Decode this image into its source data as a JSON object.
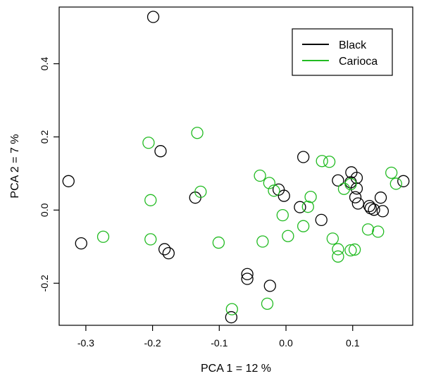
{
  "chart_data": {
    "type": "scatter",
    "title": "",
    "xlabel": "PCA 1 = 12 %",
    "ylabel": "PCA 2 = 7 %",
    "xlim": [
      -0.34,
      0.19
    ],
    "ylim": [
      -0.315,
      0.555
    ],
    "xticks": [
      -0.3,
      -0.2,
      -0.1,
      0.0,
      0.1
    ],
    "xtick_labels": [
      "-0.3",
      "-0.2",
      "-0.1",
      "0.0",
      "0.1"
    ],
    "yticks": [
      -0.2,
      0.0,
      0.2,
      0.4
    ],
    "ytick_labels": [
      "-0.2",
      "0.0",
      "0.2",
      "0.4"
    ],
    "grid": false,
    "legend_position": "top-right",
    "series": [
      {
        "name": "Black",
        "color": "#000000",
        "points": [
          [
            -0.199,
            0.528
          ],
          [
            -0.188,
            0.161
          ],
          [
            -0.326,
            0.079
          ],
          [
            -0.307,
            -0.091
          ],
          [
            -0.182,
            -0.107
          ],
          [
            -0.176,
            -0.118
          ],
          [
            -0.136,
            0.034
          ],
          [
            -0.058,
            -0.175
          ],
          [
            -0.058,
            -0.188
          ],
          [
            -0.082,
            -0.293
          ],
          [
            -0.024,
            -0.207
          ],
          [
            -0.011,
            0.056
          ],
          [
            -0.003,
            0.039
          ],
          [
            0.021,
            0.008
          ],
          [
            0.026,
            0.145
          ],
          [
            0.053,
            -0.027
          ],
          [
            0.078,
            0.081
          ],
          [
            0.097,
            0.076
          ],
          [
            0.098,
            0.103
          ],
          [
            0.106,
            0.088
          ],
          [
            0.104,
            0.035
          ],
          [
            0.108,
            0.018
          ],
          [
            0.106,
            0.059
          ],
          [
            0.125,
            0.011
          ],
          [
            0.127,
            0.005
          ],
          [
            0.132,
            0.001
          ],
          [
            0.142,
            0.034
          ],
          [
            0.145,
            -0.003
          ],
          [
            0.176,
            0.079
          ]
        ]
      },
      {
        "name": "Carioca",
        "color": "#22bb22",
        "points": [
          [
            -0.274,
            -0.073
          ],
          [
            -0.206,
            0.184
          ],
          [
            -0.203,
            0.027
          ],
          [
            -0.203,
            -0.08
          ],
          [
            -0.133,
            0.211
          ],
          [
            -0.128,
            0.05
          ],
          [
            -0.101,
            -0.089
          ],
          [
            -0.081,
            -0.271
          ],
          [
            -0.039,
            0.094
          ],
          [
            -0.035,
            -0.086
          ],
          [
            -0.028,
            -0.256
          ],
          [
            -0.025,
            0.074
          ],
          [
            -0.018,
            0.053
          ],
          [
            -0.005,
            -0.014
          ],
          [
            0.003,
            -0.071
          ],
          [
            0.037,
            0.036
          ],
          [
            0.033,
            0.009
          ],
          [
            0.026,
            -0.044
          ],
          [
            0.054,
            0.134
          ],
          [
            0.065,
            0.132
          ],
          [
            0.07,
            -0.078
          ],
          [
            0.078,
            -0.107
          ],
          [
            0.078,
            -0.127
          ],
          [
            0.087,
            0.058
          ],
          [
            0.097,
            0.071
          ],
          [
            0.097,
            -0.11
          ],
          [
            0.103,
            -0.108
          ],
          [
            0.123,
            -0.053
          ],
          [
            0.138,
            -0.059
          ],
          [
            0.158,
            0.102
          ],
          [
            0.165,
            0.072
          ]
        ]
      }
    ]
  }
}
